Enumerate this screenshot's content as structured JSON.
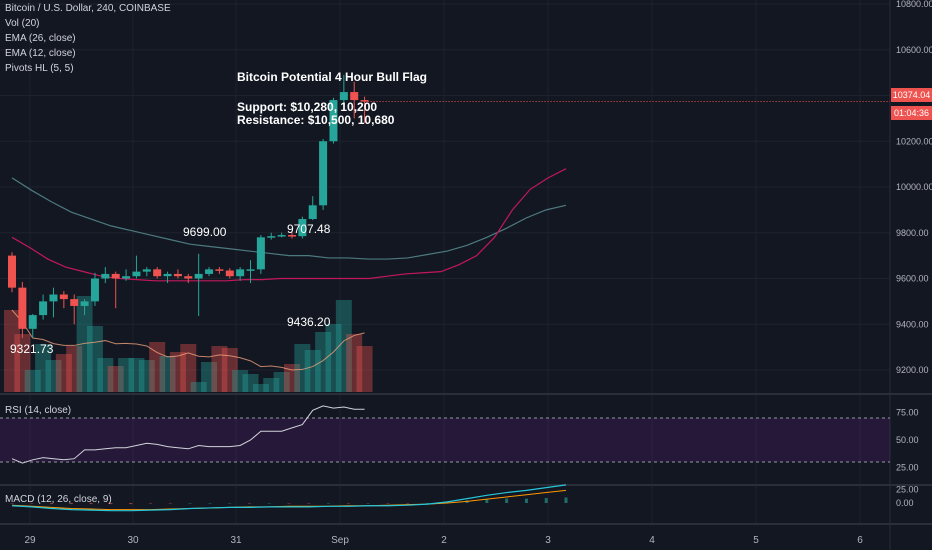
{
  "legend": {
    "symbol": "Bitcoin / U.S. Dollar, 240, COINBASE",
    "vol": "Vol (20)",
    "ema26": "EMA (26, close)",
    "ema12": "EMA (12, close)",
    "pivots": "Pivots HL (5, 5)"
  },
  "annotation": {
    "title": "Bitcoin Potential 4 Hour Bull Flag",
    "support": "Support: $10,280, 10,200",
    "resistance": "Resistance: $10,500, 10,680"
  },
  "pivots": [
    {
      "label": "9699.00",
      "x_index": 11.5,
      "price": 9699.0,
      "pos": "above"
    },
    {
      "label": "9707.48",
      "x_index": 17.5,
      "price": 9707.48,
      "pos": "above"
    },
    {
      "label": "9436.20",
      "x_index": 17.5,
      "price": 9436.2,
      "pos": "below"
    },
    {
      "label": "9321.73",
      "x_index": 1.0,
      "price": 9321.73,
      "pos": "below"
    }
  ],
  "current": {
    "price_label": "10374.04",
    "countdown": "01:04:36",
    "color": "#ef5350"
  },
  "rsi_label": "RSI (14, close)",
  "macd_label": "MACD (12, 26, close, 9)",
  "colors": {
    "up": "#26a69a",
    "down": "#ef5350",
    "background": "#131722",
    "grid": "#1e222d",
    "text": "#d1d4dc"
  },
  "chart_data": {
    "type": "candlestick",
    "x_ticks": [
      "29",
      "30",
      "31",
      "Sep",
      "2",
      "3",
      "4",
      "5",
      "6"
    ],
    "y_ticks": [
      "10800.00",
      "10600.00",
      "10400.00",
      "10200.00",
      "10000.00",
      "9800.00",
      "9600.00",
      "9400.00",
      "9200.00"
    ],
    "ylim": [
      9100,
      10800
    ],
    "candles": [
      {
        "o": 9700,
        "h": 9715,
        "l": 9540,
        "c": 9560
      },
      {
        "o": 9560,
        "h": 9585,
        "l": 9340,
        "c": 9380
      },
      {
        "o": 9380,
        "h": 9445,
        "l": 9340,
        "c": 9440
      },
      {
        "o": 9440,
        "h": 9530,
        "l": 9420,
        "c": 9500
      },
      {
        "o": 9500,
        "h": 9560,
        "l": 9430,
        "c": 9530
      },
      {
        "o": 9530,
        "h": 9545,
        "l": 9470,
        "c": 9510
      },
      {
        "o": 9510,
        "h": 9530,
        "l": 9400,
        "c": 9480
      },
      {
        "o": 9480,
        "h": 9510,
        "l": 9440,
        "c": 9500
      },
      {
        "o": 9500,
        "h": 9625,
        "l": 9480,
        "c": 9600
      },
      {
        "o": 9600,
        "h": 9650,
        "l": 9580,
        "c": 9620
      },
      {
        "o": 9620,
        "h": 9630,
        "l": 9470,
        "c": 9600
      },
      {
        "o": 9600,
        "h": 9640,
        "l": 9590,
        "c": 9610
      },
      {
        "o": 9610,
        "h": 9700,
        "l": 9600,
        "c": 9630
      },
      {
        "o": 9630,
        "h": 9650,
        "l": 9610,
        "c": 9640
      },
      {
        "o": 9640,
        "h": 9650,
        "l": 9600,
        "c": 9610
      },
      {
        "o": 9610,
        "h": 9630,
        "l": 9580,
        "c": 9620
      },
      {
        "o": 9620,
        "h": 9640,
        "l": 9600,
        "c": 9610
      },
      {
        "o": 9610,
        "h": 9620,
        "l": 9580,
        "c": 9600
      },
      {
        "o": 9600,
        "h": 9708,
        "l": 9436,
        "c": 9620
      },
      {
        "o": 9620,
        "h": 9650,
        "l": 9610,
        "c": 9640
      },
      {
        "o": 9640,
        "h": 9650,
        "l": 9620,
        "c": 9635
      },
      {
        "o": 9635,
        "h": 9645,
        "l": 9600,
        "c": 9610
      },
      {
        "o": 9610,
        "h": 9650,
        "l": 9590,
        "c": 9640
      },
      {
        "o": 9640,
        "h": 9680,
        "l": 9580,
        "c": 9640
      },
      {
        "o": 9640,
        "h": 9790,
        "l": 9620,
        "c": 9780
      },
      {
        "o": 9780,
        "h": 9800,
        "l": 9770,
        "c": 9785
      },
      {
        "o": 9785,
        "h": 9800,
        "l": 9780,
        "c": 9790
      },
      {
        "o": 9790,
        "h": 9810,
        "l": 9775,
        "c": 9785
      },
      {
        "o": 9785,
        "h": 9870,
        "l": 9775,
        "c": 9860
      },
      {
        "o": 9860,
        "h": 9960,
        "l": 9855,
        "c": 9920
      },
      {
        "o": 9920,
        "h": 10210,
        "l": 9900,
        "c": 10200
      },
      {
        "o": 10200,
        "h": 10390,
        "l": 10190,
        "c": 10380
      },
      {
        "o": 10380,
        "h": 10490,
        "l": 10350,
        "c": 10415
      },
      {
        "o": 10415,
        "h": 10460,
        "l": 10300,
        "c": 10380
      },
      {
        "o": 10380,
        "h": 10395,
        "l": 10280,
        "c": 10374
      }
    ],
    "volume": [
      41,
      29,
      11,
      24,
      16,
      19,
      23,
      48,
      33,
      17,
      13,
      17,
      17,
      16,
      25,
      18,
      20,
      24,
      5,
      15,
      23,
      22,
      11,
      9,
      4,
      7,
      10,
      14,
      24,
      21,
      30,
      34,
      46,
      29,
      23
    ],
    "ema12": [
      9780,
      9735,
      9685,
      9650,
      9630,
      9610,
      9600,
      9595,
      9590,
      9590,
      9590,
      9590,
      9590,
      9595,
      9595,
      9600,
      9600,
      9600,
      9600,
      9600,
      9600,
      9610,
      9620,
      9625,
      9630,
      9660,
      9700,
      9780,
      9900,
      9990,
      10040,
      10080
    ],
    "ema26": [
      10040,
      9985,
      9935,
      9890,
      9860,
      9830,
      9810,
      9790,
      9770,
      9750,
      9740,
      9730,
      9720,
      9710,
      9700,
      9700,
      9690,
      9690,
      9685,
      9685,
      9690,
      9705,
      9720,
      9745,
      9780,
      9820,
      9865,
      9900,
      9920
    ],
    "rsi": {
      "ylim": [
        10,
        90
      ],
      "y_ticks": [
        "75.00",
        "50.00",
        "25.00"
      ],
      "bands": [
        70,
        30
      ],
      "values": [
        33,
        29,
        32,
        34,
        33,
        32,
        33,
        41,
        41,
        42,
        43,
        43,
        45,
        47,
        46,
        44,
        43,
        42,
        45,
        44,
        44,
        44,
        45,
        50,
        58,
        58,
        58,
        61,
        64,
        77,
        81,
        79,
        80,
        78,
        78
      ]
    },
    "macd": {
      "y_ticks": [
        "25.00",
        "0.00"
      ],
      "macd": [
        -5,
        -7,
        -10,
        -12,
        -13,
        -14,
        -14,
        -13,
        -12,
        -10,
        -9,
        -8,
        -8,
        -7,
        -7,
        -7,
        -6,
        -6,
        -5,
        -5,
        -4,
        -2,
        2,
        8,
        14,
        19,
        23,
        28,
        33
      ],
      "signal": [
        -4,
        -6,
        -8,
        -10,
        -11,
        -12,
        -12,
        -12,
        -11,
        -10,
        -9,
        -8,
        -7,
        -7,
        -6,
        -6,
        -6,
        -5,
        -5,
        -4,
        -3,
        -2,
        0,
        3,
        7,
        11,
        15,
        19,
        23
      ]
    }
  }
}
